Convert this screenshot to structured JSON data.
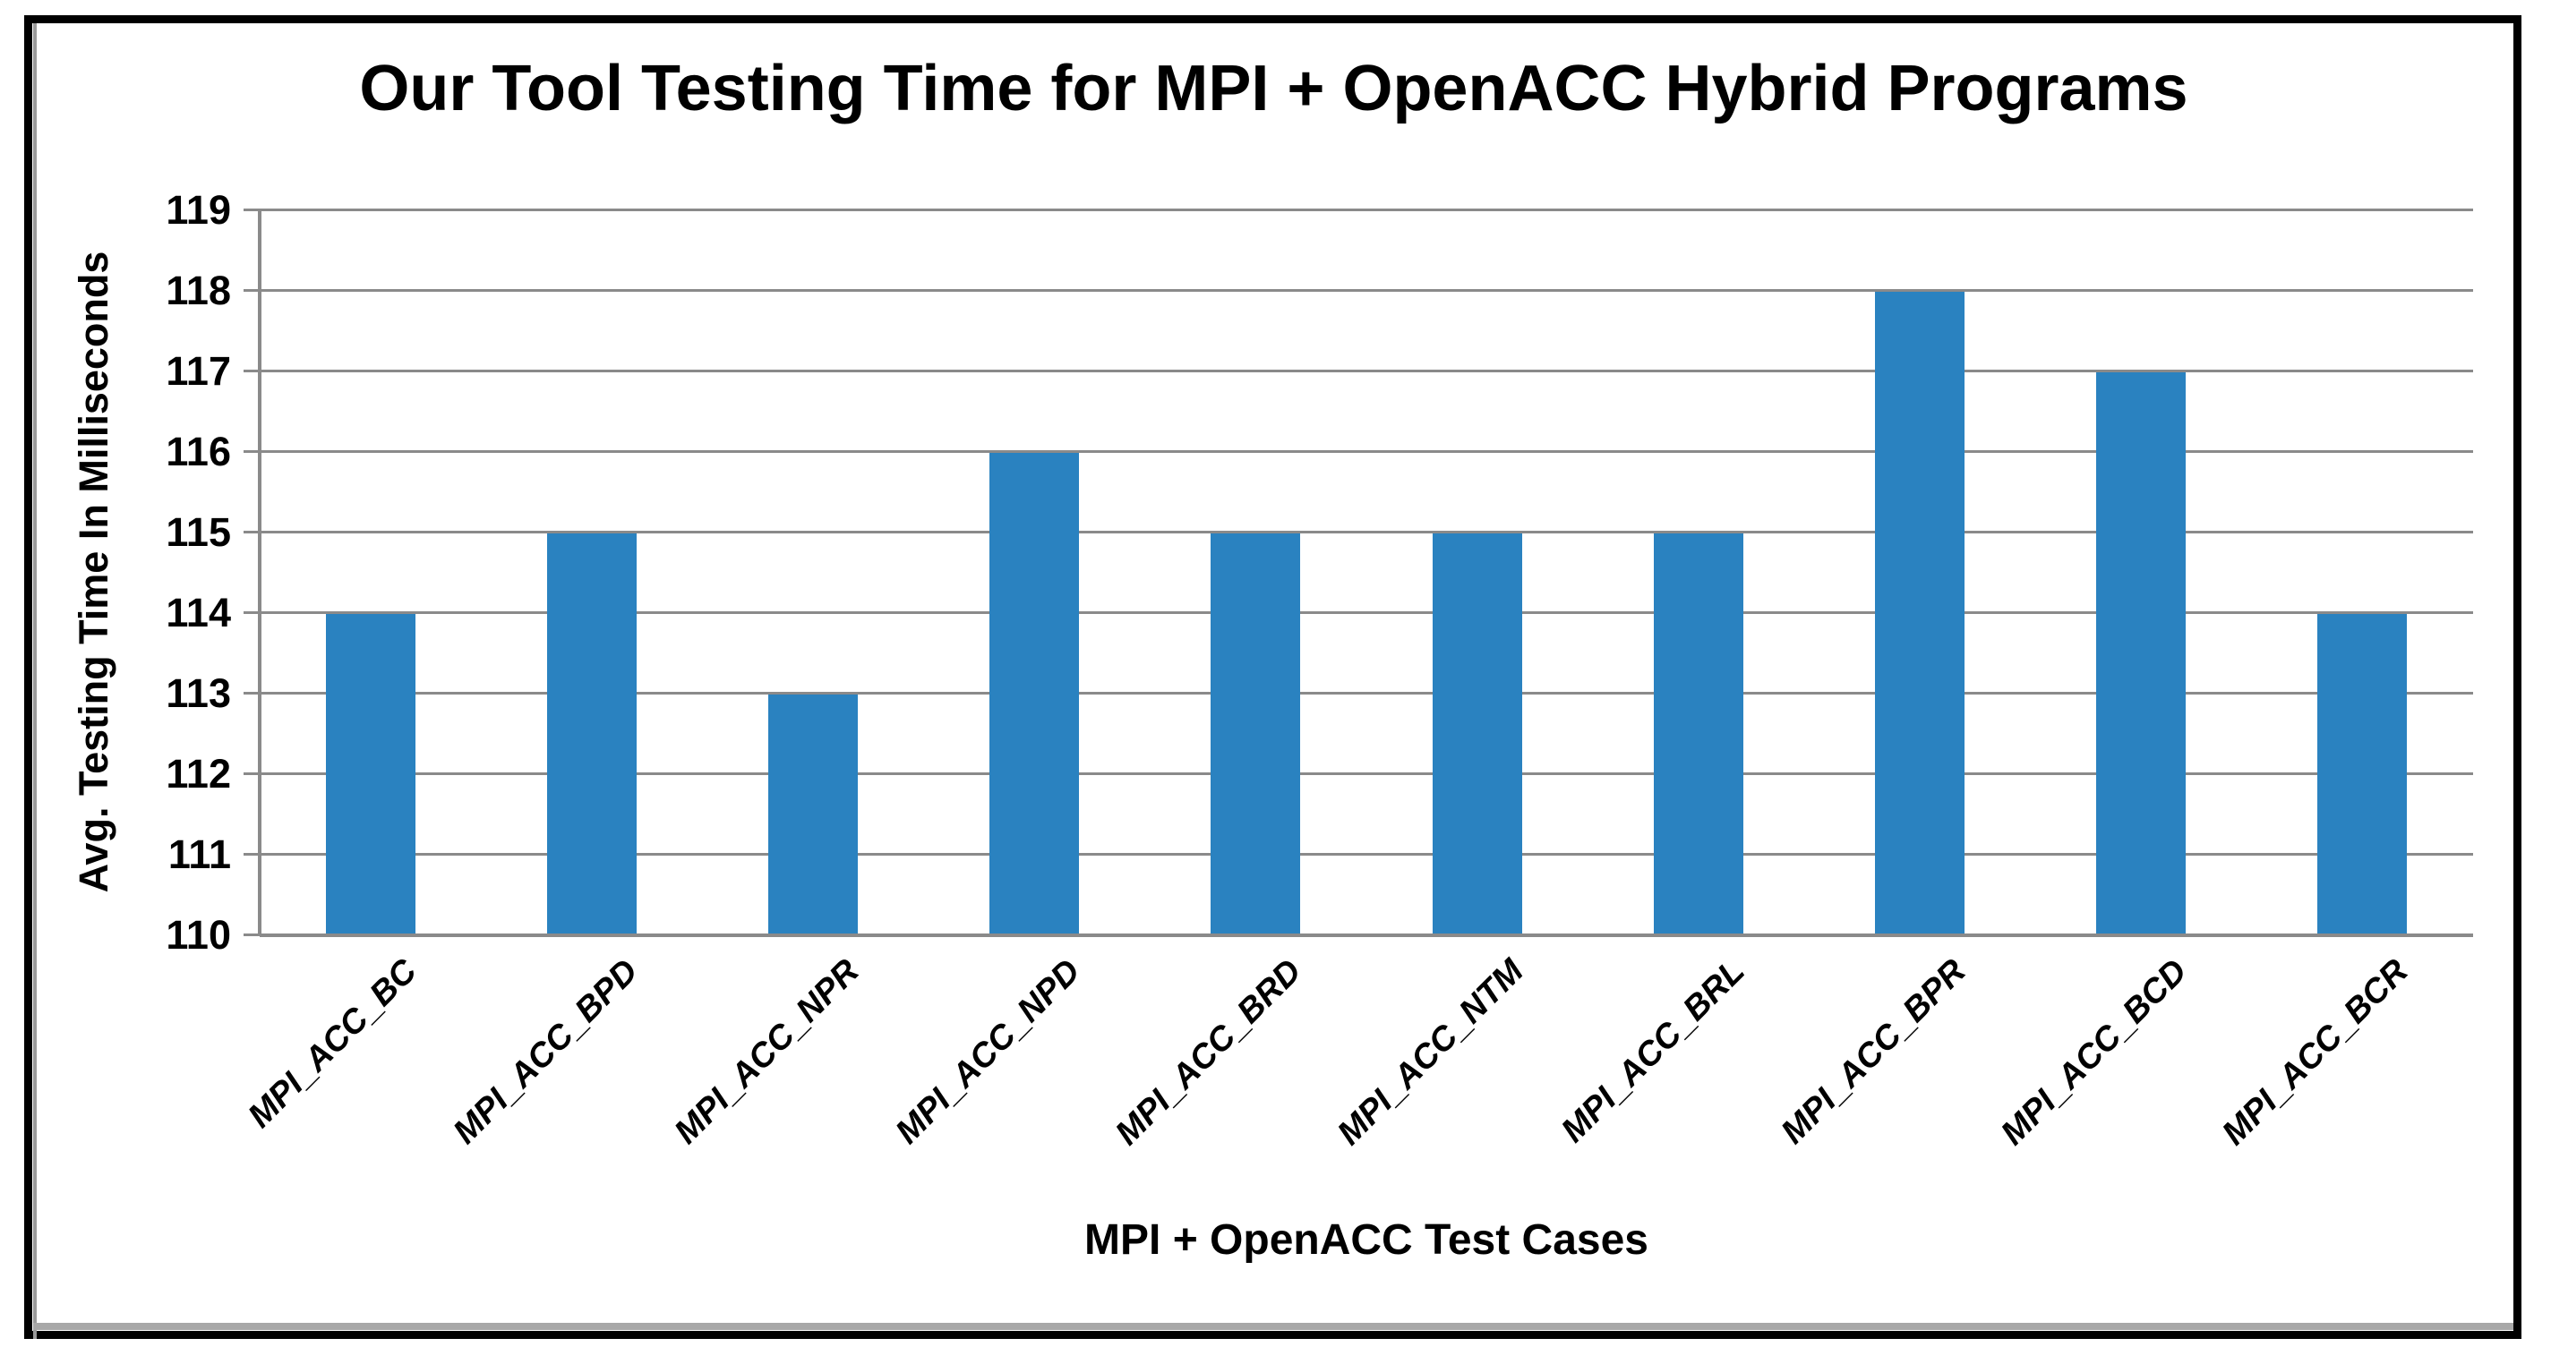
{
  "chart_data": {
    "type": "bar",
    "title": "Our Tool Testing Time for MPI + OpenACC Hybrid Programs",
    "xlabel": "MPI + OpenACC Test Cases",
    "ylabel": "Avg. Testing Time In Milliseconds",
    "categories": [
      "MPI_ACC_BC",
      "MPI_ACC_BPD",
      "MPI_ACC_NPR",
      "MPI_ACC_NPD",
      "MPI_ACC_BRD",
      "MPI_ACC_NTM",
      "MPI_ACC_BRL",
      "MPI_ACC_BPR",
      "MPI_ACC_BCD",
      "MPI_ACC_BCR"
    ],
    "values": [
      114,
      115,
      113,
      116,
      115,
      115,
      115,
      118,
      117,
      114
    ],
    "ylim": [
      110,
      119
    ],
    "ytick_step": 1,
    "yticks": [
      110,
      111,
      112,
      113,
      114,
      115,
      116,
      117,
      118,
      119
    ],
    "grid": "horizontal",
    "legend_position": "none",
    "bar_color": "#2A82C0",
    "grid_color": "#8a8a8a",
    "axis_color": "#8a8a8a",
    "text_color": "#000000",
    "frame_border_color": "#000000",
    "frame_strip_color": "#a8a8a8"
  }
}
